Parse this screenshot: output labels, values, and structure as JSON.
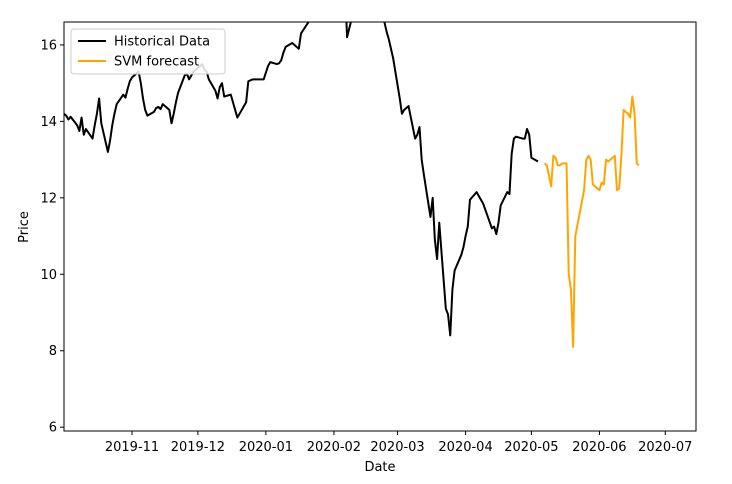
{
  "chart_data": {
    "type": "line",
    "title": "",
    "xlabel": "Date",
    "ylabel": "Price",
    "xlim": [
      "2019-10-01",
      "2020-07-15"
    ],
    "ylim": [
      5.9,
      16.6
    ],
    "x_ticks": [
      {
        "date": "2019-11-01",
        "label": "2019-11"
      },
      {
        "date": "2019-12-01",
        "label": "2019-12"
      },
      {
        "date": "2020-01-01",
        "label": "2020-01"
      },
      {
        "date": "2020-02-01",
        "label": "2020-02"
      },
      {
        "date": "2020-03-01",
        "label": "2020-03"
      },
      {
        "date": "2020-04-01",
        "label": "2020-04"
      },
      {
        "date": "2020-05-01",
        "label": "2020-05"
      },
      {
        "date": "2020-06-01",
        "label": "2020-06"
      },
      {
        "date": "2020-07-01",
        "label": "2020-07"
      }
    ],
    "y_ticks": [
      {
        "value": 6,
        "label": "6"
      },
      {
        "value": 8,
        "label": "8"
      },
      {
        "value": 10,
        "label": "10"
      },
      {
        "value": 12,
        "label": "12"
      },
      {
        "value": 14,
        "label": "14"
      },
      {
        "value": 16,
        "label": "16"
      }
    ],
    "grid": false,
    "legend_position": "upper-left",
    "series": [
      {
        "name": "Historical Data",
        "color": "#000000",
        "points": [
          [
            "2019-10-01",
            14.2
          ],
          [
            "2019-10-02",
            14.15
          ],
          [
            "2019-10-03",
            14.05
          ],
          [
            "2019-10-04",
            14.12
          ],
          [
            "2019-10-07",
            13.9
          ],
          [
            "2019-10-08",
            13.75
          ],
          [
            "2019-10-09",
            14.1
          ],
          [
            "2019-10-10",
            13.65
          ],
          [
            "2019-10-11",
            13.8
          ],
          [
            "2019-10-14",
            13.55
          ],
          [
            "2019-10-15",
            13.9
          ],
          [
            "2019-10-16",
            14.2
          ],
          [
            "2019-10-17",
            14.6
          ],
          [
            "2019-10-18",
            13.95
          ],
          [
            "2019-10-21",
            13.2
          ],
          [
            "2019-10-22",
            13.5
          ],
          [
            "2019-10-23",
            13.9
          ],
          [
            "2019-10-24",
            14.2
          ],
          [
            "2019-10-25",
            14.45
          ],
          [
            "2019-10-28",
            14.7
          ],
          [
            "2019-10-29",
            14.62
          ],
          [
            "2019-10-30",
            14.85
          ],
          [
            "2019-10-31",
            15.05
          ],
          [
            "2019-11-01",
            15.15
          ],
          [
            "2019-11-04",
            15.3
          ],
          [
            "2019-11-05",
            15.0
          ],
          [
            "2019-11-06",
            14.6
          ],
          [
            "2019-11-07",
            14.3
          ],
          [
            "2019-11-08",
            14.15
          ],
          [
            "2019-11-11",
            14.25
          ],
          [
            "2019-11-12",
            14.35
          ],
          [
            "2019-11-13",
            14.38
          ],
          [
            "2019-11-14",
            14.32
          ],
          [
            "2019-11-15",
            14.45
          ],
          [
            "2019-11-18",
            14.3
          ],
          [
            "2019-11-19",
            13.95
          ],
          [
            "2019-11-20",
            14.2
          ],
          [
            "2019-11-21",
            14.5
          ],
          [
            "2019-11-22",
            14.75
          ],
          [
            "2019-11-25",
            15.2
          ],
          [
            "2019-11-26",
            15.25
          ],
          [
            "2019-11-27",
            15.1
          ],
          [
            "2019-11-29",
            15.3
          ],
          [
            "2019-12-02",
            15.45
          ],
          [
            "2019-12-03",
            15.5
          ],
          [
            "2019-12-04",
            15.35
          ],
          [
            "2019-12-05",
            15.3
          ],
          [
            "2019-12-06",
            15.1
          ],
          [
            "2019-12-09",
            14.8
          ],
          [
            "2019-12-10",
            14.6
          ],
          [
            "2019-12-11",
            14.9
          ],
          [
            "2019-12-12",
            15.0
          ],
          [
            "2019-12-13",
            14.65
          ],
          [
            "2019-12-16",
            14.7
          ],
          [
            "2019-12-17",
            14.5
          ],
          [
            "2019-12-18",
            14.3
          ],
          [
            "2019-12-19",
            14.1
          ],
          [
            "2019-12-20",
            14.2
          ],
          [
            "2019-12-23",
            14.5
          ],
          [
            "2019-12-24",
            15.05
          ],
          [
            "2019-12-26",
            15.1
          ],
          [
            "2019-12-27",
            15.1
          ],
          [
            "2019-12-30",
            15.1
          ],
          [
            "2019-12-31",
            15.1
          ],
          [
            "2020-01-02",
            15.45
          ],
          [
            "2020-01-03",
            15.55
          ],
          [
            "2020-01-06",
            15.5
          ],
          [
            "2020-01-07",
            15.52
          ],
          [
            "2020-01-08",
            15.6
          ],
          [
            "2020-01-09",
            15.8
          ],
          [
            "2020-01-10",
            15.95
          ],
          [
            "2020-01-13",
            16.05
          ],
          [
            "2020-01-14",
            16.0
          ],
          [
            "2020-01-15",
            15.95
          ],
          [
            "2020-01-16",
            15.9
          ],
          [
            "2020-01-17",
            16.3
          ],
          [
            "2020-01-21",
            16.65
          ],
          [
            "2020-01-22",
            16.9
          ],
          [
            "2020-01-23",
            17.2
          ],
          [
            "2020-01-24",
            17.4
          ],
          [
            "2020-02-06",
            17.6
          ],
          [
            "2020-02-07",
            16.2
          ],
          [
            "2020-02-10",
            16.9
          ],
          [
            "2020-02-11",
            17.2
          ],
          [
            "2020-02-14",
            17.4
          ],
          [
            "2020-02-19",
            17.3
          ],
          [
            "2020-02-20",
            17.1
          ],
          [
            "2020-02-21",
            16.9
          ],
          [
            "2020-02-24",
            16.6
          ],
          [
            "2020-02-25",
            16.35
          ],
          [
            "2020-02-26",
            16.15
          ],
          [
            "2020-02-27",
            15.9
          ],
          [
            "2020-02-28",
            15.65
          ],
          [
            "2020-03-02",
            14.6
          ],
          [
            "2020-03-03",
            14.2
          ],
          [
            "2020-03-04",
            14.3
          ],
          [
            "2020-03-05",
            14.35
          ],
          [
            "2020-03-06",
            14.4
          ],
          [
            "2020-03-09",
            13.55
          ],
          [
            "2020-03-10",
            13.65
          ],
          [
            "2020-03-11",
            13.85
          ],
          [
            "2020-03-12",
            13.0
          ],
          [
            "2020-03-13",
            12.6
          ],
          [
            "2020-03-16",
            11.5
          ],
          [
            "2020-03-17",
            12.0
          ],
          [
            "2020-03-18",
            10.9
          ],
          [
            "2020-03-19",
            10.4
          ],
          [
            "2020-03-20",
            11.35
          ],
          [
            "2020-03-23",
            9.1
          ],
          [
            "2020-03-24",
            8.95
          ],
          [
            "2020-03-25",
            8.4
          ],
          [
            "2020-03-26",
            9.6
          ],
          [
            "2020-03-27",
            10.1
          ],
          [
            "2020-03-30",
            10.5
          ],
          [
            "2020-03-31",
            10.7
          ],
          [
            "2020-04-01",
            11.0
          ],
          [
            "2020-04-02",
            11.25
          ],
          [
            "2020-04-03",
            11.95
          ],
          [
            "2020-04-06",
            12.15
          ],
          [
            "2020-04-07",
            12.05
          ],
          [
            "2020-04-08",
            11.95
          ],
          [
            "2020-04-09",
            11.85
          ],
          [
            "2020-04-13",
            11.2
          ],
          [
            "2020-04-14",
            11.25
          ],
          [
            "2020-04-15",
            11.05
          ],
          [
            "2020-04-16",
            11.35
          ],
          [
            "2020-04-17",
            11.8
          ],
          [
            "2020-04-20",
            12.15
          ],
          [
            "2020-04-21",
            12.1
          ],
          [
            "2020-04-22",
            13.15
          ],
          [
            "2020-04-23",
            13.55
          ],
          [
            "2020-04-24",
            13.6
          ],
          [
            "2020-04-27",
            13.55
          ],
          [
            "2020-04-28",
            13.55
          ],
          [
            "2020-04-29",
            13.8
          ],
          [
            "2020-04-30",
            13.65
          ],
          [
            "2020-05-01",
            13.05
          ],
          [
            "2020-05-04",
            12.95
          ]
        ]
      },
      {
        "name": "SVM forecast",
        "color": "#ffa500",
        "points": [
          [
            "2020-05-07",
            12.9
          ],
          [
            "2020-05-08",
            12.85
          ],
          [
            "2020-05-10",
            12.3
          ],
          [
            "2020-05-11",
            13.1
          ],
          [
            "2020-05-12",
            13.05
          ],
          [
            "2020-05-13",
            12.85
          ],
          [
            "2020-05-14",
            12.85
          ],
          [
            "2020-05-15",
            12.9
          ],
          [
            "2020-05-17",
            12.9
          ],
          [
            "2020-05-18",
            10.0
          ],
          [
            "2020-05-19",
            9.6
          ],
          [
            "2020-05-20",
            8.1
          ],
          [
            "2020-05-21",
            11.0
          ],
          [
            "2020-05-25",
            12.2
          ],
          [
            "2020-05-26",
            13.0
          ],
          [
            "2020-05-27",
            13.1
          ],
          [
            "2020-05-28",
            13.0
          ],
          [
            "2020-05-29",
            12.35
          ],
          [
            "2020-06-01",
            12.2
          ],
          [
            "2020-06-02",
            12.4
          ],
          [
            "2020-06-03",
            12.35
          ],
          [
            "2020-06-04",
            13.0
          ],
          [
            "2020-06-05",
            12.95
          ],
          [
            "2020-06-07",
            13.05
          ],
          [
            "2020-06-08",
            13.1
          ],
          [
            "2020-06-09",
            12.2
          ],
          [
            "2020-06-10",
            12.25
          ],
          [
            "2020-06-11",
            13.1
          ],
          [
            "2020-06-12",
            14.3
          ],
          [
            "2020-06-14",
            14.2
          ],
          [
            "2020-06-15",
            14.1
          ],
          [
            "2020-06-16",
            14.65
          ],
          [
            "2020-06-17",
            14.2
          ],
          [
            "2020-06-18",
            12.9
          ],
          [
            "2020-06-19",
            12.85
          ]
        ]
      }
    ]
  }
}
